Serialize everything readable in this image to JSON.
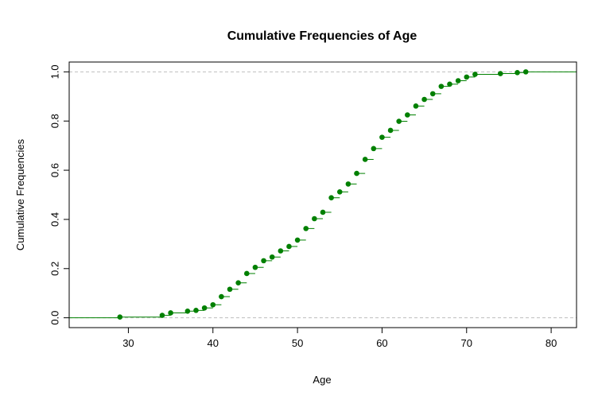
{
  "chart_data": {
    "type": "step",
    "title": "Cumulative Frequencies of Age",
    "xlabel": "Age",
    "ylabel": "Cumulative Frequencies",
    "xlim": [
      23,
      83
    ],
    "ylim": [
      -0.04,
      1.04
    ],
    "x_ticks": [
      30,
      40,
      50,
      60,
      70,
      80
    ],
    "y_ticks": [
      "0.0",
      "0.2",
      "0.4",
      "0.6",
      "0.8",
      "1.0"
    ],
    "reference_lines": [
      0,
      1
    ],
    "grid": false,
    "colors": {
      "series": "#008000",
      "reference": "#bebebe",
      "axis": "#000000"
    },
    "series": [
      {
        "x": [
          29,
          34,
          35,
          37,
          38,
          39,
          40,
          41,
          42,
          43,
          44,
          45,
          46,
          47,
          48,
          49,
          50,
          51,
          52,
          53,
          54,
          55,
          56,
          57,
          58,
          59,
          60,
          61,
          62,
          63,
          64,
          65,
          66,
          67,
          68,
          69,
          70,
          71,
          74,
          76,
          77
        ],
        "y": [
          0.003,
          0.01,
          0.02,
          0.027,
          0.03,
          0.04,
          0.053,
          0.086,
          0.116,
          0.142,
          0.18,
          0.205,
          0.232,
          0.247,
          0.272,
          0.29,
          0.316,
          0.363,
          0.403,
          0.429,
          0.488,
          0.512,
          0.544,
          0.587,
          0.644,
          0.688,
          0.734,
          0.762,
          0.799,
          0.825,
          0.861,
          0.888,
          0.911,
          0.941,
          0.95,
          0.964,
          0.979,
          0.99,
          0.993,
          0.997,
          1.0
        ]
      }
    ]
  }
}
